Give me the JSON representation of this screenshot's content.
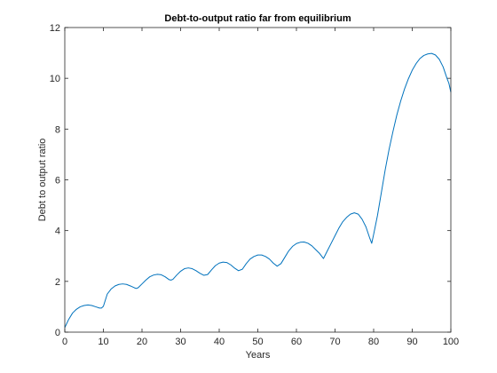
{
  "chart_data": {
    "type": "line",
    "title": "Debt-to-output ratio far from equilibrium",
    "xlabel": "Years",
    "ylabel": "Debt to output ratio",
    "xlim": [
      0,
      100
    ],
    "ylim": [
      0,
      12
    ],
    "xticks": [
      0,
      10,
      20,
      30,
      40,
      50,
      60,
      70,
      80,
      90,
      100
    ],
    "yticks": [
      0,
      2,
      4,
      6,
      8,
      10,
      12
    ],
    "grid": false,
    "legend": "none",
    "colors": {
      "line": "#0072BD",
      "axis": "#262626",
      "background": "#ffffff"
    },
    "series": [
      {
        "x": [
          0,
          1,
          2,
          3,
          4,
          5,
          6,
          7,
          8,
          9,
          9.5,
          10,
          11,
          12,
          13,
          14,
          15,
          16,
          17,
          18,
          18.5,
          19,
          20,
          21,
          22,
          23,
          24,
          25,
          26,
          27,
          27.5,
          28,
          29,
          30,
          31,
          32,
          33,
          34,
          35,
          36,
          37,
          38,
          39,
          40,
          41,
          42,
          43,
          44,
          45,
          46,
          47,
          48,
          49,
          50,
          51,
          52,
          53,
          54,
          55,
          56,
          57,
          58,
          59,
          60,
          61,
          62,
          63,
          64,
          65,
          66,
          67,
          68,
          69,
          70,
          71,
          72,
          73,
          74,
          75,
          76,
          77,
          78,
          79,
          79.5,
          80,
          81,
          82,
          83,
          84,
          85,
          86,
          87,
          88,
          89,
          90,
          91,
          92,
          93,
          94,
          95,
          96,
          97,
          98,
          99,
          99.5,
          100
        ],
        "y": [
          0.18,
          0.5,
          0.75,
          0.9,
          1.0,
          1.05,
          1.07,
          1.05,
          1.0,
          0.95,
          0.95,
          1.02,
          1.5,
          1.7,
          1.82,
          1.88,
          1.9,
          1.88,
          1.82,
          1.75,
          1.72,
          1.75,
          1.9,
          2.05,
          2.18,
          2.25,
          2.28,
          2.26,
          2.18,
          2.07,
          2.05,
          2.08,
          2.25,
          2.4,
          2.5,
          2.53,
          2.5,
          2.42,
          2.32,
          2.24,
          2.27,
          2.45,
          2.62,
          2.72,
          2.76,
          2.74,
          2.65,
          2.52,
          2.42,
          2.48,
          2.7,
          2.88,
          2.98,
          3.04,
          3.04,
          2.98,
          2.88,
          2.72,
          2.6,
          2.7,
          2.95,
          3.2,
          3.38,
          3.49,
          3.54,
          3.55,
          3.5,
          3.4,
          3.25,
          3.1,
          2.9,
          3.2,
          3.5,
          3.8,
          4.1,
          4.35,
          4.52,
          4.65,
          4.7,
          4.65,
          4.45,
          4.15,
          3.7,
          3.5,
          3.85,
          4.6,
          5.5,
          6.4,
          7.2,
          7.9,
          8.55,
          9.1,
          9.58,
          9.98,
          10.32,
          10.58,
          10.78,
          10.9,
          10.96,
          10.98,
          10.92,
          10.75,
          10.45,
          10.0,
          9.8,
          9.45
        ]
      }
    ]
  }
}
